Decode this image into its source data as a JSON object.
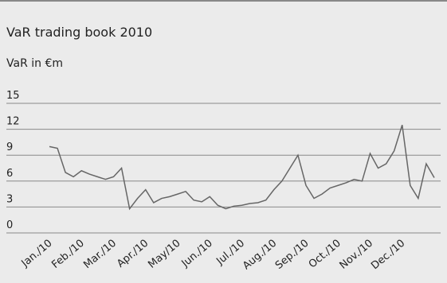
{
  "chart_data": {
    "type": "line",
    "title": "VaR trading book 2010",
    "y_label": "VaR in €m",
    "categories": [
      "Jan./10",
      null,
      null,
      null,
      "Feb./10",
      null,
      null,
      null,
      "Mar./10",
      null,
      null,
      null,
      "Apr./10",
      null,
      null,
      null,
      "May/10",
      null,
      null,
      null,
      "Jun./10",
      null,
      null,
      null,
      "Jul./10",
      null,
      null,
      null,
      "Aug./10",
      null,
      null,
      null,
      "Sep./10",
      null,
      null,
      null,
      "Oct./10",
      null,
      null,
      null,
      "Nov./10",
      null,
      null,
      null,
      "Dec./10",
      null,
      null,
      null,
      null
    ],
    "series": [
      {
        "name": "VaR",
        "color": "#666666",
        "values": [
          10,
          9.8,
          7,
          6.5,
          7.2,
          6.8,
          6.5,
          6.2,
          6.5,
          7.5,
          2.8,
          4,
          5,
          3.5,
          4,
          4.2,
          4.5,
          4.8,
          3.8,
          3.6,
          4.2,
          3.2,
          2.8,
          3.1,
          3.2,
          3.4,
          3.5,
          3.8,
          5,
          6,
          7.5,
          9,
          5.5,
          4,
          4.5,
          5.2,
          5.5,
          5.8,
          6.2,
          6,
          9.2,
          7.5,
          8,
          9.5,
          12.5,
          5.5,
          4,
          8,
          6.4
        ]
      }
    ],
    "ylim": [
      0,
      15
    ],
    "yticks": [
      0,
      3,
      6,
      9,
      12,
      15
    ],
    "grid": true
  }
}
